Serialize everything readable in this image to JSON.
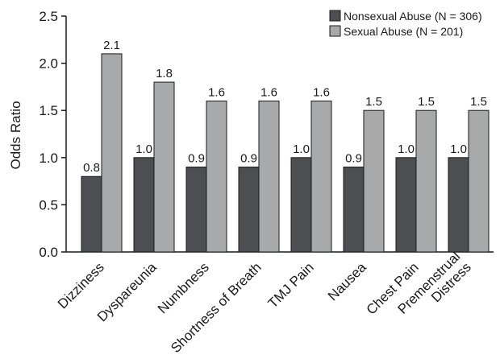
{
  "chart_data": {
    "type": "bar",
    "title": "",
    "xlabel": "",
    "ylabel": "Odds Ratio",
    "ylim": [
      0,
      2.5
    ],
    "yticks": [
      "0.0",
      "0.5",
      "1.0",
      "1.5",
      "2.0",
      "2.5"
    ],
    "grid": false,
    "legend_position": "top-right",
    "categories": [
      "Dizziness",
      "Dyspareunia",
      "Numbness",
      "Shortness of Breath",
      "TMJ Pain",
      "Nausea",
      "Chest Pain",
      "Premenstrual Distress"
    ],
    "category_lines": [
      [
        "Dizziness"
      ],
      [
        "Dyspareunia"
      ],
      [
        "Numbness"
      ],
      [
        "Shortness of Breath"
      ],
      [
        "TMJ Pain"
      ],
      [
        "Nausea"
      ],
      [
        "Chest Pain"
      ],
      [
        "Premenstrual",
        "Distress"
      ]
    ],
    "series": [
      {
        "name": "Nonsexual Abuse (N = 306)",
        "color": "#4d4e52",
        "values": [
          0.8,
          1.0,
          0.9,
          0.9,
          1.0,
          0.9,
          1.0,
          1.0
        ],
        "labels": [
          "0.8",
          "1.0",
          "0.9",
          "0.9",
          "1.0",
          "0.9",
          "1.0",
          "1.0"
        ]
      },
      {
        "name": "Sexual Abuse (N = 201)",
        "color": "#a8a9ab",
        "values": [
          2.1,
          1.8,
          1.6,
          1.6,
          1.6,
          1.5,
          1.5,
          1.5
        ],
        "labels": [
          "2.1",
          "1.8",
          "1.6",
          "1.6",
          "1.6",
          "1.5",
          "1.5",
          "1.5"
        ]
      }
    ]
  }
}
